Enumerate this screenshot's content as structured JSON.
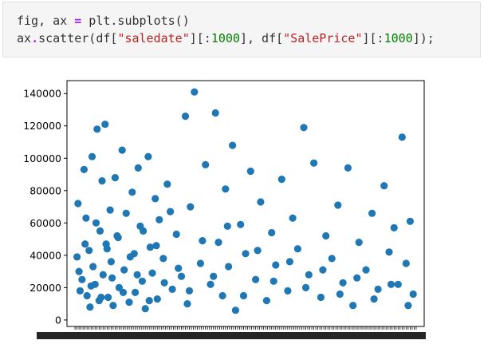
{
  "code_cell": {
    "line1": {
      "a": "fig, ax ",
      "op": "=",
      "b": " plt.subplots()"
    },
    "line2": {
      "a": "ax",
      "op": ".",
      "b": "scatter(df[",
      "s1": "\"saledate\"",
      "c": "][:",
      "n1": "1000",
      "d": "], df[",
      "s2": "\"SalePrice\"",
      "e": "][:",
      "n2": "1000",
      "f": "]);"
    }
  },
  "chart_data": {
    "type": "scatter",
    "title": "",
    "xlabel": "",
    "ylabel": "",
    "ylim": [
      -4000,
      148000
    ],
    "yticks": [
      0,
      20000,
      40000,
      60000,
      80000,
      100000,
      120000,
      140000
    ],
    "ytick_labels": [
      "0",
      "20000",
      "40000",
      "60000",
      "80000",
      "100000",
      "120000",
      "140000"
    ],
    "x_categories_count": 340,
    "x_tick_labels_note": "overlapping, illegible",
    "grid": false,
    "legend": "none",
    "marker_color": "#1f77b4",
    "series": [
      {
        "x": [
          2,
          3,
          5,
          7,
          9,
          11,
          12,
          14,
          15,
          17,
          18,
          20,
          22,
          24,
          25,
          27,
          28,
          30,
          31,
          33,
          35,
          36,
          38,
          40,
          42,
          44,
          47,
          49,
          51,
          54,
          57,
          59,
          60,
          63,
          65,
          67,
          70,
          73,
          75,
          77,
          80,
          82,
          84,
          88,
          92,
          97,
          101,
          106,
          110,
          112,
          115,
          119,
          125,
          130,
          135,
          140,
          143,
          147,
          150,
          153,
          157,
          160,
          165,
          170,
          175,
          180,
          185,
          191,
          196,
          200,
          206,
          212,
          217,
          222,
          228,
          233,
          238,
          245,
          250,
          256,
          262,
          267,
          272,
          277,
          283,
          290,
          296,
          302,
          308,
          313,
          318,
          322,
          326,
          330,
          334,
          337,
          4,
          10,
          16,
          21,
          26,
          32,
          37,
          43,
          48,
          55,
          62,
          68,
          74,
          81,
          89,
          95,
          103,
          114,
          127,
          138,
          152,
          168,
          182,
          198,
          214,
          230,
          247,
          264,
          281,
          298,
          315,
          332
        ],
        "y": [
          39000,
          72000,
          18000,
          25000,
          93000,
          63000,
          15000,
          43000,
          8000,
          101000,
          33000,
          22000,
          118000,
          12000,
          55000,
          86000,
          28000,
          121000,
          47000,
          14000,
          68000,
          36000,
          9000,
          88000,
          52000,
          20000,
          105000,
          31000,
          66000,
          11000,
          79000,
          41000,
          17000,
          94000,
          58000,
          24000,
          7000,
          101000,
          45000,
          29000,
          75000,
          13000,
          62000,
          38000,
          84000,
          19000,
          53000,
          27000,
          126000,
          10000,
          70000,
          141000,
          35000,
          96000,
          22000,
          128000,
          48000,
          15000,
          81000,
          33000,
          108000,
          6000,
          59000,
          41000,
          92000,
          25000,
          73000,
          12000,
          54000,
          34000,
          87000,
          18000,
          63000,
          44000,
          119000,
          28000,
          97000,
          14000,
          52000,
          38000,
          71000,
          23000,
          94000,
          9000,
          48000,
          31000,
          66000,
          19000,
          83000,
          42000,
          57000,
          22000,
          113000,
          35000,
          61000,
          16000,
          30000,
          47000,
          21000,
          60000,
          14000,
          44000,
          26000,
          51000,
          17000,
          39000,
          28000,
          55000,
          12000,
          46000,
          23000,
          67000,
          32000,
          18000,
          49000,
          27000,
          58000,
          15000,
          43000,
          24000,
          36000,
          20000,
          31000,
          16000,
          26000,
          13000,
          22000,
          9000
        ]
      }
    ]
  }
}
